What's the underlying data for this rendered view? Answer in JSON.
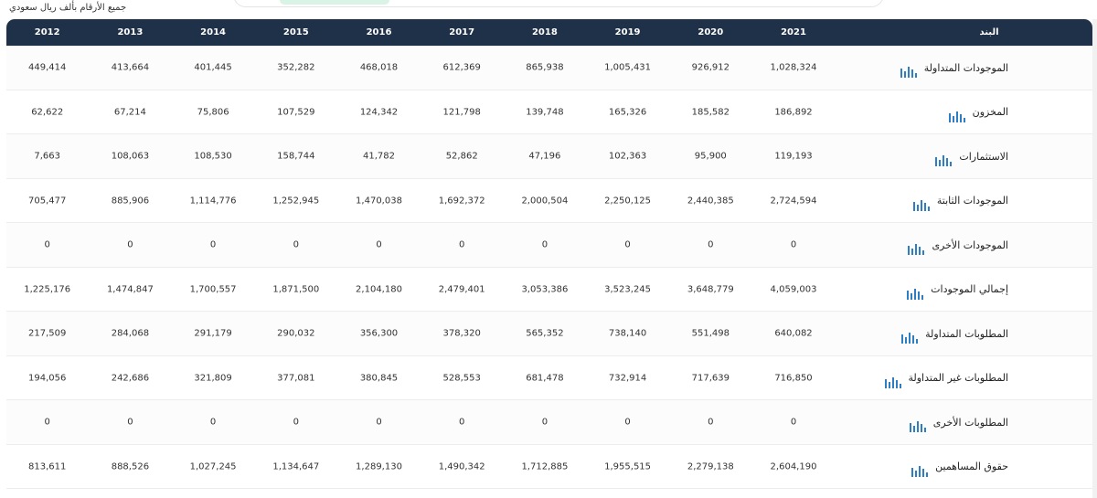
{
  "note": "جميع الأرقام بألف ريال سعودي",
  "table": {
    "columns": [
      "البند",
      "2021",
      "2020",
      "2019",
      "2018",
      "2017",
      "2016",
      "2015",
      "2014",
      "2013",
      "2012"
    ],
    "rows": [
      [
        "الموجودات المتداولة",
        "1,028,324",
        "926,912",
        "1,005,431",
        "865,938",
        "612,369",
        "468,018",
        "352,282",
        "401,445",
        "413,664",
        "449,414"
      ],
      [
        "المخزون",
        "186,892",
        "185,582",
        "165,326",
        "139,748",
        "121,798",
        "124,342",
        "107,529",
        "75,806",
        "67,214",
        "62,622"
      ],
      [
        "الاستثمارات",
        "119,193",
        "95,900",
        "102,363",
        "47,196",
        "52,862",
        "41,782",
        "158,744",
        "108,530",
        "108,063",
        "7,663"
      ],
      [
        "الموجودات الثابتة",
        "2,724,594",
        "2,440,385",
        "2,250,125",
        "2,000,504",
        "1,692,372",
        "1,470,038",
        "1,252,945",
        "1,114,776",
        "885,906",
        "705,477"
      ],
      [
        "الموجودات الأخرى",
        "0",
        "0",
        "0",
        "0",
        "0",
        "0",
        "0",
        "0",
        "0",
        "0"
      ],
      [
        "إجمالي الموجودات",
        "4,059,003",
        "3,648,779",
        "3,523,245",
        "3,053,386",
        "2,479,401",
        "2,104,180",
        "1,871,500",
        "1,700,557",
        "1,474,847",
        "1,225,176"
      ],
      [
        "المطلوبات المتداولة",
        "640,082",
        "551,498",
        "738,140",
        "565,352",
        "378,320",
        "356,300",
        "290,032",
        "291,179",
        "284,068",
        "217,509"
      ],
      [
        "المطلوبات غير المتداولة",
        "716,850",
        "717,639",
        "732,914",
        "681,478",
        "528,553",
        "380,845",
        "377,081",
        "321,809",
        "242,686",
        "194,056"
      ],
      [
        "المطلوبات الأخرى",
        "0",
        "0",
        "0",
        "0",
        "0",
        "0",
        "0",
        "0",
        "0",
        "0"
      ],
      [
        "حقوق المساهمين",
        "2,604,190",
        "2,279,138",
        "1,955,515",
        "1,712,885",
        "1,490,342",
        "1,289,130",
        "1,134,647",
        "1,027,245",
        "888,526",
        "813,611"
      ]
    ]
  }
}
